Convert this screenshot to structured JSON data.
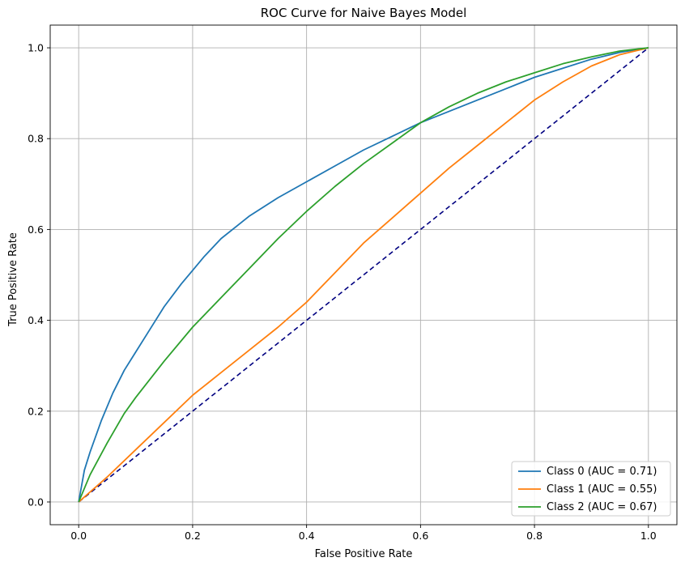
{
  "chart_data": {
    "type": "line",
    "title": "ROC Curve for Naive Bayes Model",
    "xlabel": "False Positive Rate",
    "ylabel": "True Positive Rate",
    "xlim": [
      -0.05,
      1.05
    ],
    "ylim": [
      -0.05,
      1.05
    ],
    "xticks": [
      0.0,
      0.2,
      0.4,
      0.6,
      0.8,
      1.0
    ],
    "yticks": [
      0.0,
      0.2,
      0.4,
      0.6,
      0.8,
      1.0
    ],
    "xtick_labels": [
      "0.0",
      "0.2",
      "0.4",
      "0.6",
      "0.8",
      "1.0"
    ],
    "ytick_labels": [
      "0.0",
      "0.2",
      "0.4",
      "0.6",
      "0.8",
      "1.0"
    ],
    "grid": true,
    "legend_position": "lower-right",
    "series": [
      {
        "name": "Class 0 (AUC = 0.71)",
        "color": "#1f77b4",
        "x": [
          0,
          0.01,
          0.02,
          0.04,
          0.06,
          0.08,
          0.1,
          0.12,
          0.15,
          0.18,
          0.2,
          0.22,
          0.25,
          0.28,
          0.3,
          0.35,
          0.4,
          0.45,
          0.5,
          0.55,
          0.6,
          0.65,
          0.7,
          0.75,
          0.8,
          0.85,
          0.9,
          0.95,
          1.0
        ],
        "y": [
          0,
          0.07,
          0.11,
          0.18,
          0.24,
          0.29,
          0.33,
          0.37,
          0.43,
          0.48,
          0.51,
          0.54,
          0.58,
          0.61,
          0.63,
          0.67,
          0.705,
          0.74,
          0.775,
          0.805,
          0.835,
          0.86,
          0.885,
          0.91,
          0.935,
          0.955,
          0.975,
          0.99,
          1.0
        ]
      },
      {
        "name": "Class 1 (AUC = 0.55)",
        "color": "#ff7f0e",
        "x": [
          0,
          0.05,
          0.1,
          0.15,
          0.2,
          0.25,
          0.3,
          0.35,
          0.4,
          0.45,
          0.5,
          0.55,
          0.6,
          0.65,
          0.7,
          0.75,
          0.8,
          0.85,
          0.9,
          0.95,
          1.0
        ],
        "y": [
          0,
          0.055,
          0.115,
          0.175,
          0.235,
          0.285,
          0.335,
          0.385,
          0.44,
          0.505,
          0.57,
          0.625,
          0.68,
          0.735,
          0.785,
          0.835,
          0.885,
          0.925,
          0.96,
          0.985,
          1.0
        ]
      },
      {
        "name": "Class 2 (AUC = 0.67)",
        "color": "#2ca02c",
        "x": [
          0,
          0.02,
          0.05,
          0.08,
          0.1,
          0.15,
          0.2,
          0.25,
          0.3,
          0.35,
          0.4,
          0.45,
          0.5,
          0.55,
          0.6,
          0.65,
          0.7,
          0.75,
          0.8,
          0.85,
          0.9,
          0.95,
          1.0
        ],
        "y": [
          0,
          0.06,
          0.13,
          0.195,
          0.23,
          0.31,
          0.385,
          0.45,
          0.515,
          0.58,
          0.64,
          0.695,
          0.745,
          0.79,
          0.835,
          0.87,
          0.9,
          0.925,
          0.945,
          0.965,
          0.98,
          0.993,
          1.0
        ]
      }
    ],
    "reference_line": {
      "x": [
        0,
        1
      ],
      "y": [
        0,
        1
      ],
      "color": "#000080",
      "style": "dashed"
    }
  }
}
